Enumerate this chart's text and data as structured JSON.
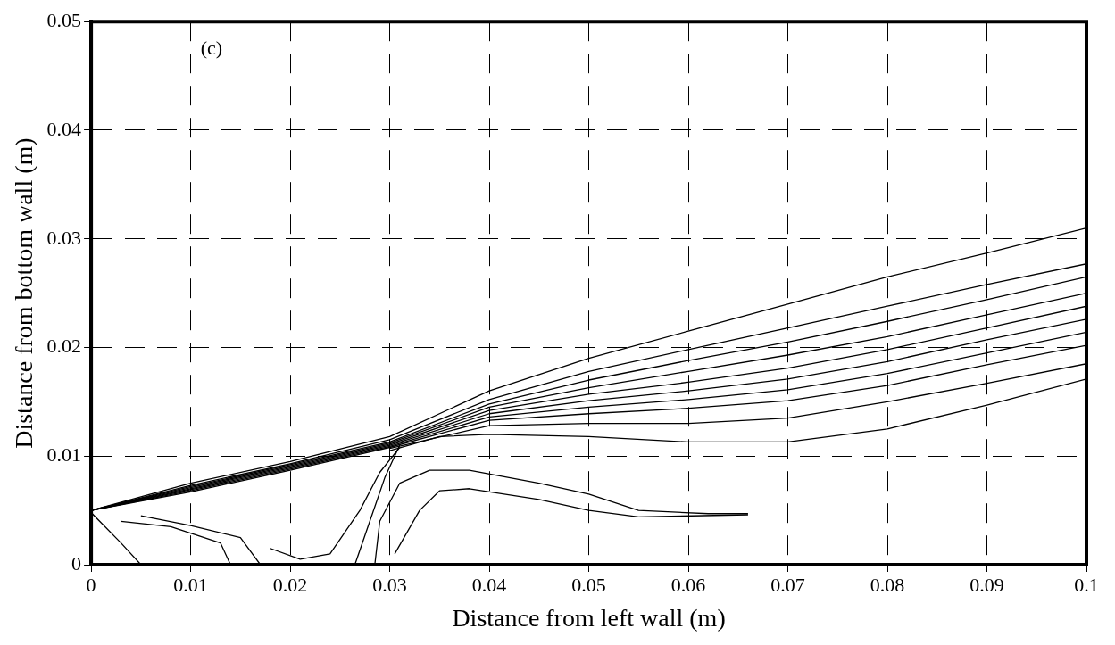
{
  "chart_data": {
    "type": "line",
    "xlabel": "Distance from left wall (m)",
    "ylabel": "Distance from bottom wall (m)",
    "annotations": [
      "(c)"
    ],
    "xlim": [
      0,
      0.1
    ],
    "ylim": [
      0,
      0.05
    ],
    "xticks": [
      0,
      0.01,
      0.02,
      0.03,
      0.04,
      0.05,
      0.06,
      0.07,
      0.08,
      0.09,
      0.1
    ],
    "yticks": [
      0,
      0.01,
      0.02,
      0.03,
      0.04,
      0.05
    ],
    "grid": true,
    "legend": false,
    "marker": "none",
    "line_style": "solid",
    "series": [
      {
        "color": "#000000",
        "x": [
          0,
          0.01,
          0.02,
          0.03,
          0.04,
          0.05,
          0.06,
          0.07,
          0.08,
          0.09,
          0.1
        ],
        "values": [
          0.005,
          0.0075,
          0.0095,
          0.0118,
          0.016,
          0.019,
          0.0215,
          0.024,
          0.0265,
          0.0287,
          0.031
        ]
      },
      {
        "color": "#000000",
        "x": [
          0,
          0.01,
          0.02,
          0.03,
          0.04,
          0.05,
          0.06,
          0.07,
          0.08,
          0.09,
          0.1
        ],
        "values": [
          0.005,
          0.0073,
          0.0093,
          0.0115,
          0.0152,
          0.0178,
          0.0198,
          0.0218,
          0.0238,
          0.0258,
          0.0277
        ]
      },
      {
        "color": "#000000",
        "x": [
          0,
          0.01,
          0.02,
          0.03,
          0.04,
          0.05,
          0.06,
          0.07,
          0.08,
          0.09,
          0.1
        ],
        "values": [
          0.005,
          0.0072,
          0.0092,
          0.0113,
          0.0148,
          0.017,
          0.0188,
          0.0205,
          0.0224,
          0.0244,
          0.0265
        ]
      },
      {
        "color": "#000000",
        "x": [
          0,
          0.01,
          0.02,
          0.03,
          0.04,
          0.05,
          0.06,
          0.07,
          0.08,
          0.09,
          0.1
        ],
        "values": [
          0.005,
          0.0071,
          0.0091,
          0.0112,
          0.0145,
          0.0163,
          0.0178,
          0.0193,
          0.021,
          0.023,
          0.025
        ]
      },
      {
        "color": "#000000",
        "x": [
          0,
          0.01,
          0.02,
          0.03,
          0.04,
          0.05,
          0.06,
          0.07,
          0.08,
          0.09,
          0.1
        ],
        "values": [
          0.005,
          0.007,
          0.009,
          0.0111,
          0.0142,
          0.0157,
          0.0168,
          0.0181,
          0.0198,
          0.0218,
          0.0238
        ]
      },
      {
        "color": "#000000",
        "x": [
          0,
          0.01,
          0.02,
          0.03,
          0.04,
          0.05,
          0.06,
          0.07,
          0.08,
          0.09,
          0.1
        ],
        "values": [
          0.005,
          0.0069,
          0.0089,
          0.011,
          0.0139,
          0.0151,
          0.016,
          0.0171,
          0.0187,
          0.0207,
          0.0226
        ]
      },
      {
        "color": "#000000",
        "x": [
          0,
          0.01,
          0.02,
          0.03,
          0.04,
          0.05,
          0.06,
          0.07,
          0.08,
          0.09,
          0.1
        ],
        "values": [
          0.005,
          0.0068,
          0.0088,
          0.0109,
          0.0136,
          0.0145,
          0.0152,
          0.0161,
          0.0176,
          0.0195,
          0.0214
        ]
      },
      {
        "color": "#000000",
        "x": [
          0,
          0.01,
          0.02,
          0.03,
          0.04,
          0.05,
          0.06,
          0.07,
          0.08,
          0.09,
          0.1
        ],
        "values": [
          0.005,
          0.0067,
          0.0087,
          0.0108,
          0.0133,
          0.0139,
          0.0144,
          0.0151,
          0.0165,
          0.0184,
          0.0202
        ]
      },
      {
        "color": "#000000",
        "x": [
          0.03,
          0.04,
          0.05,
          0.06,
          0.07,
          0.08,
          0.09,
          0.1
        ],
        "values": [
          0.0107,
          0.0128,
          0.013,
          0.013,
          0.0135,
          0.015,
          0.0167,
          0.0185
        ]
      },
      {
        "color": "#000000",
        "x": [
          0.03,
          0.035,
          0.04,
          0.05,
          0.06,
          0.07,
          0.08,
          0.09,
          0.1
        ],
        "values": [
          0.0105,
          0.0118,
          0.012,
          0.0118,
          0.0113,
          0.0113,
          0.0125,
          0.0147,
          0.0171
        ]
      },
      {
        "color": "#000000",
        "x": [
          0.0285,
          0.029,
          0.031,
          0.034,
          0.038,
          0.045,
          0.05,
          0.055,
          0.062,
          0.066
        ],
        "values": [
          0,
          0.004,
          0.0075,
          0.0087,
          0.0087,
          0.0075,
          0.0065,
          0.005,
          0.0047,
          0.0047
        ]
      },
      {
        "color": "#000000",
        "x": [
          0.0305,
          0.033,
          0.035,
          0.038,
          0.045,
          0.05,
          0.055,
          0.066
        ],
        "values": [
          0.001,
          0.005,
          0.0068,
          0.007,
          0.006,
          0.005,
          0.0044,
          0.0046
        ]
      },
      {
        "color": "#000000",
        "x": [
          0.0265,
          0.028,
          0.0295,
          0.031
        ],
        "values": [
          0,
          0.004,
          0.008,
          0.011
        ]
      },
      {
        "color": "#000000",
        "x": [
          0.018,
          0.021,
          0.024,
          0.027,
          0.029,
          0.031
        ],
        "values": [
          0.0015,
          0.0005,
          0.001,
          0.005,
          0.0085,
          0.0108
        ]
      },
      {
        "color": "#000000",
        "x": [
          0.005,
          0.01,
          0.015,
          0.017
        ],
        "values": [
          0.0045,
          0.0036,
          0.0025,
          0
        ]
      },
      {
        "color": "#000000",
        "x": [
          0.003,
          0.008,
          0.013,
          0.014
        ],
        "values": [
          0.004,
          0.0035,
          0.002,
          0
        ]
      },
      {
        "color": "#000000",
        "x": [
          0,
          0.003,
          0.005
        ],
        "values": [
          0.0048,
          0.002,
          0
        ]
      }
    ]
  }
}
